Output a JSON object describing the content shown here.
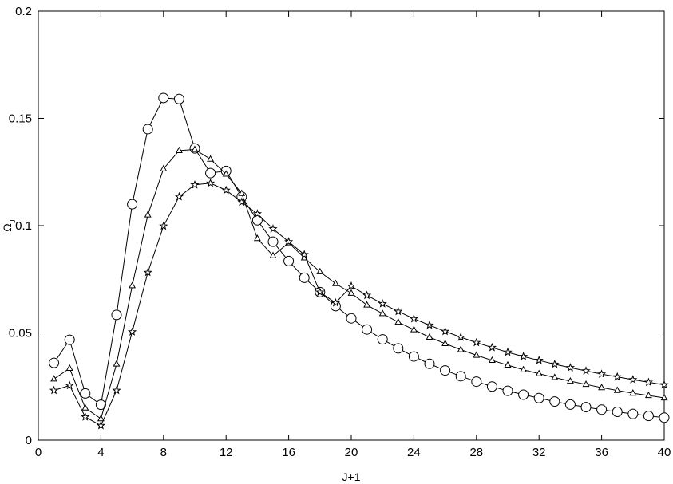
{
  "chart_data": {
    "type": "line",
    "xlabel": "J+1",
    "ylabel_main": "Ω",
    "ylabel_sub": "J",
    "xlim": [
      0,
      40
    ],
    "ylim": [
      0,
      0.2
    ],
    "xticks": [
      0,
      4,
      8,
      12,
      16,
      20,
      24,
      28,
      32,
      36,
      40
    ],
    "xtick_labels": [
      "0",
      "4",
      "8",
      "12",
      "16",
      "20",
      "24",
      "28",
      "32",
      "36",
      "40"
    ],
    "yticks": [
      0,
      0.05,
      0.1,
      0.15,
      0.2
    ],
    "ytick_labels": [
      "0",
      "0.05",
      "0.1",
      "0.15",
      "0.2"
    ],
    "grid": false,
    "x": [
      1,
      2,
      3,
      4,
      5,
      6,
      7,
      8,
      9,
      10,
      11,
      12,
      13,
      14,
      15,
      16,
      17,
      18,
      19,
      20,
      21,
      22,
      23,
      24,
      25,
      26,
      27,
      28,
      29,
      30,
      31,
      32,
      33,
      34,
      35,
      36,
      37,
      38,
      39,
      40
    ],
    "series": [
      {
        "marker": "circle",
        "values": [
          0.036,
          0.0468,
          0.0218,
          0.0165,
          0.0584,
          0.11,
          0.145,
          0.1595,
          0.159,
          0.136,
          0.1245,
          0.1255,
          0.1135,
          0.1025,
          0.0925,
          0.0835,
          0.0757,
          0.069,
          0.0625,
          0.0568,
          0.0516,
          0.047,
          0.0428,
          0.039,
          0.0356,
          0.0325,
          0.0298,
          0.0273,
          0.025,
          0.023,
          0.0212,
          0.0196,
          0.018,
          0.0166,
          0.0154,
          0.0142,
          0.0132,
          0.0122,
          0.0113,
          0.0105
        ]
      },
      {
        "marker": "triangle",
        "values": [
          0.0285,
          0.0335,
          0.015,
          0.01,
          0.0355,
          0.072,
          0.105,
          0.1265,
          0.135,
          0.1355,
          0.131,
          0.124,
          0.115,
          0.094,
          0.086,
          0.092,
          0.085,
          0.0785,
          0.073,
          0.0685,
          0.063,
          0.059,
          0.055,
          0.0515,
          0.048,
          0.045,
          0.0422,
          0.0396,
          0.0372,
          0.035,
          0.0328,
          0.031,
          0.0292,
          0.0275,
          0.026,
          0.0245,
          0.0232,
          0.0219,
          0.0208,
          0.0197
        ]
      },
      {
        "marker": "star",
        "values": [
          0.0232,
          0.0255,
          0.0108,
          0.0068,
          0.0232,
          0.0505,
          0.0782,
          0.0998,
          0.1135,
          0.119,
          0.1198,
          0.1165,
          0.111,
          0.1055,
          0.0985,
          0.0925,
          0.0865,
          0.069,
          0.064,
          0.0718,
          0.0675,
          0.0636,
          0.06,
          0.0566,
          0.0536,
          0.0507,
          0.048,
          0.0455,
          0.0432,
          0.041,
          0.039,
          0.0372,
          0.0354,
          0.0338,
          0.0323,
          0.0308,
          0.0295,
          0.0282,
          0.027,
          0.0258
        ]
      }
    ]
  }
}
